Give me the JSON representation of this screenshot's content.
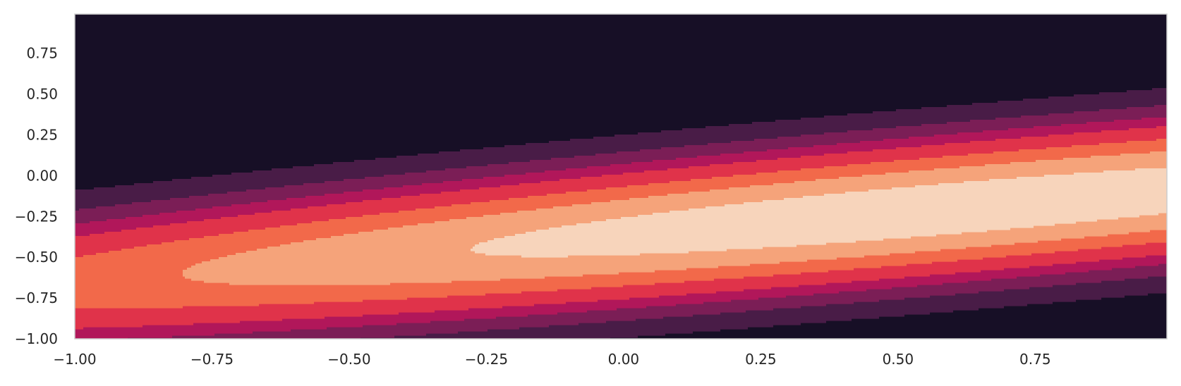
{
  "chart_data": {
    "type": "contourf",
    "title": "",
    "xlabel": "",
    "ylabel": "",
    "xlim": [
      -1.0,
      0.99
    ],
    "ylim": [
      -1.0,
      0.99
    ],
    "grid": false,
    "legend": "none",
    "x_ticks": [
      "−1.00",
      "−0.75",
      "−0.50",
      "−0.25",
      "0.00",
      "0.25",
      "0.50",
      "0.75"
    ],
    "x_tick_values": [
      -1.0,
      -0.75,
      -0.5,
      -0.25,
      0.0,
      0.25,
      0.5,
      0.75
    ],
    "y_ticks": [
      "−1.00",
      "−0.75",
      "−0.50",
      "−0.25",
      "0.00",
      "0.25",
      "0.50",
      "0.75"
    ],
    "y_tick_values": [
      -1.0,
      -0.75,
      -0.5,
      -0.25,
      0.0,
      0.25,
      0.5,
      0.75
    ],
    "colormap": "rocket",
    "level_colors": [
      "#170f26",
      "#491c47",
      "#7b1e56",
      "#b1175a",
      "#e0334a",
      "#f2694a",
      "#f5a37a",
      "#f7d4bb"
    ],
    "field": {
      "form": "exp(-(a*(x-x0)^2 + b*(y-y0)^2 + c*(x-x0)*(y-y0)))",
      "x0": 0.6,
      "y0": -0.2,
      "a": 0.65,
      "b": 5.8,
      "c": -3.3
    },
    "levels": [
      0.1,
      0.2,
      0.3,
      0.4,
      0.55,
      0.7,
      0.87
    ]
  }
}
